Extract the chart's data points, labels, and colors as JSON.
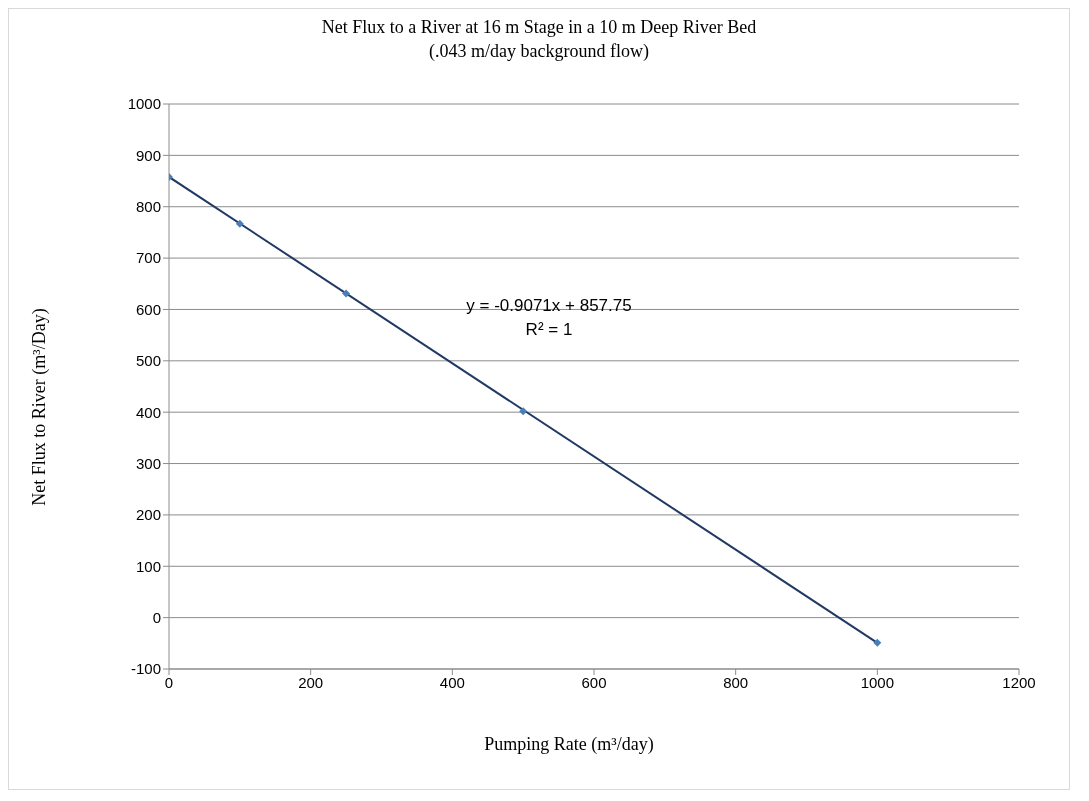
{
  "chart_data": {
    "type": "scatter",
    "title": "Net Flux to a River at 16 m Stage in a 10 m Deep River Bed",
    "subtitle": "(.043 m/day background flow)",
    "xlabel": "Pumping Rate (m³/day)",
    "ylabel": "Net Flux to River (m³/Day)",
    "xlim": [
      0,
      1200
    ],
    "xticks": [
      0,
      200,
      400,
      600,
      800,
      1000,
      1200
    ],
    "ylim": [
      -100,
      1000
    ],
    "yticks": [
      -100,
      0,
      100,
      200,
      300,
      400,
      500,
      600,
      700,
      800,
      900,
      1000
    ],
    "grid": "y",
    "legend": false,
    "annotations": [
      "y = -0.9071x + 857.75",
      "R² = 1"
    ],
    "series": [
      {
        "marker": "diamond",
        "color": "#4a7ebb",
        "x": [
          0,
          100,
          250,
          500,
          1000
        ],
        "values": [
          858,
          767,
          631,
          402,
          -49
        ]
      },
      {
        "type": "line",
        "marker": "none",
        "color": "#1f3864",
        "x": [
          0,
          1000
        ],
        "values": [
          858,
          -49
        ]
      }
    ]
  }
}
